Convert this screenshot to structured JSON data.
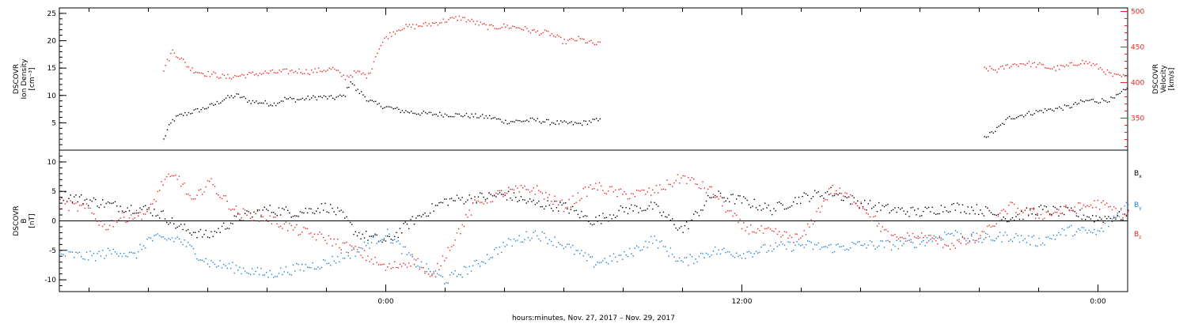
{
  "colors": {
    "black": "#000000",
    "red": "#e8241c",
    "blue": "#1f7fd0",
    "frame": "#000000"
  },
  "chart_data": [
    {
      "type": "scatter",
      "panel": "top",
      "ylabel_lines": [
        "DSCOVR",
        "Ion Density",
        "[cm⁻³]"
      ],
      "ylabel2_lines": [
        "DSCOVR",
        "Velocity",
        "[km/s]"
      ],
      "ylim": [
        0,
        26
      ],
      "yticks": [
        5,
        10,
        15,
        20,
        25
      ],
      "y2lim": [
        305,
        505
      ],
      "y2ticks": [
        350,
        400,
        450,
        500
      ],
      "grid": false,
      "series": [
        {
          "axis": "left",
          "color": "black",
          "x": [
            -7.5,
            -7.4,
            -7.2,
            -7.0,
            -6.6,
            -6.2,
            -5.8,
            -5.4,
            -5.0,
            -4.6,
            -4.2,
            -3.8,
            -3.4,
            -3.0,
            -2.6,
            -2.2,
            -1.8,
            -1.4,
            -1.2,
            -1.0,
            -0.8,
            -0.6,
            -0.3,
            0.0,
            0.5,
            1.0,
            1.5,
            2.0,
            2.5,
            3.0,
            3.5,
            4.0,
            4.5,
            5.0,
            5.5,
            6.0,
            6.5,
            7.0,
            20.3,
            20.6,
            21.0,
            21.5,
            22.0,
            22.5,
            23.0,
            23.4,
            23.7,
            24.0,
            24.5,
            25.0,
            25.5,
            26.0,
            26.5,
            27.0,
            27.3,
            27.6
          ],
          "y": [
            2.0,
            3.5,
            5.5,
            6.3,
            7.0,
            7.6,
            8.4,
            9.6,
            10.1,
            9.0,
            8.8,
            8.5,
            9.5,
            9.3,
            9.6,
            9.8,
            9.6,
            10.0,
            12.8,
            11.0,
            10.4,
            9.2,
            8.4,
            8.0,
            7.3,
            6.9,
            6.7,
            6.6,
            6.5,
            6.3,
            6.1,
            5.3,
            5.4,
            5.6,
            5.2,
            5.0,
            4.9,
            5.5,
            2.8,
            4.0,
            6.0,
            6.6,
            7.2,
            7.6,
            8.0,
            8.8,
            9.2,
            9.1,
            9.4,
            11.4,
            10.8,
            10.6,
            10.2,
            9.6,
            7.0,
            9.8
          ]
        },
        {
          "axis": "right",
          "color": "red",
          "x": [
            -7.5,
            -7.2,
            -7.0,
            -6.6,
            -6.2,
            -5.8,
            -5.4,
            -5.0,
            -4.6,
            -4.2,
            -3.8,
            -3.4,
            -3.0,
            -2.6,
            -2.2,
            -1.8,
            -1.4,
            -1.0,
            -0.6,
            -0.3,
            0.0,
            0.5,
            1.0,
            1.5,
            2.0,
            2.5,
            3.0,
            3.5,
            4.0,
            4.5,
            5.0,
            5.5,
            6.0,
            6.5,
            7.0,
            20.3,
            20.6,
            21.0,
            21.5,
            22.0,
            22.5,
            23.0,
            23.4,
            23.7,
            24.0,
            24.5,
            25.0,
            25.5,
            26.0,
            26.5,
            27.0,
            27.3,
            27.6
          ],
          "y": [
            420,
            445,
            438,
            420,
            414,
            412,
            408,
            410,
            412,
            414,
            415,
            416,
            417,
            416,
            418,
            420,
            408,
            415,
            410,
            445,
            465,
            478,
            480,
            483,
            488,
            492,
            485,
            478,
            480,
            478,
            472,
            470,
            458,
            462,
            455,
            420,
            418,
            425,
            428,
            425,
            420,
            424,
            430,
            428,
            422,
            410,
            408,
            405,
            404,
            405,
            400,
            390,
            410
          ]
        }
      ]
    },
    {
      "type": "scatter",
      "panel": "bottom",
      "ylabel_lines": [
        "DSCOVR",
        "B",
        "[nT]"
      ],
      "ylim": [
        -12,
        12
      ],
      "yticks": [
        -10,
        -5,
        0,
        5,
        10
      ],
      "grid": false,
      "xlabel": "hours:minutes, Nov. 27, 2017 – Nov. 29, 2017",
      "xlim": [
        -11,
        25
      ],
      "xticks": [
        0,
        12,
        24
      ],
      "xtick_labels": [
        "0:00",
        "12:00",
        "0:00"
      ],
      "legend": {
        "placement": "right",
        "entries": [
          {
            "base": "B",
            "sub": "x",
            "color": "black"
          },
          {
            "base": "B",
            "sub": "y",
            "color": "blue"
          },
          {
            "base": "B",
            "sub": "z",
            "color": "red"
          }
        ]
      },
      "series": [
        {
          "color": "black",
          "x": [
            -11.0,
            -10.0,
            -9.0,
            -8.0,
            -7.5,
            -7.0,
            -6.0,
            -5.0,
            -4.0,
            -3.0,
            -2.0,
            -1.5,
            -1.0,
            0.0,
            1.0,
            2.0,
            3.0,
            4.0,
            5.0,
            6.0,
            7.0,
            8.0,
            9.0,
            10.0,
            11.0,
            12.0,
            13.0,
            14.0,
            15.0,
            16.0,
            17.0,
            18.0,
            19.0,
            20.0,
            21.0,
            22.0,
            23.0,
            24.0,
            25.0,
            26.0,
            27.0,
            28.0
          ],
          "y": [
            4.5,
            3.5,
            2.5,
            2.0,
            1.0,
            -1.0,
            -2.5,
            0.5,
            2.0,
            1.5,
            2.5,
            1.0,
            -2.0,
            -3.5,
            0.5,
            3.5,
            4.0,
            4.5,
            3.0,
            2.5,
            0.0,
            2.0,
            2.5,
            -1.5,
            4.5,
            3.5,
            2.0,
            4.0,
            5.0,
            3.0,
            2.0,
            1.5,
            2.5,
            2.0,
            0.5,
            2.0,
            1.5,
            0.5,
            1.0,
            1.5,
            2.0,
            3.5
          ]
        },
        {
          "color": "blue",
          "x": [
            -11.0,
            -10.0,
            -9.0,
            -8.5,
            -8.0,
            -7.0,
            -6.0,
            -5.0,
            -4.0,
            -3.0,
            -2.0,
            -1.0,
            0.0,
            1.0,
            2.0,
            3.0,
            4.0,
            5.0,
            6.0,
            7.0,
            8.0,
            9.0,
            10.0,
            11.0,
            12.0,
            13.0,
            14.0,
            15.0,
            16.0,
            17.0,
            18.0,
            19.0,
            20.0,
            21.0,
            22.0,
            23.0,
            24.0,
            25.0,
            26.0,
            27.0,
            28.0
          ],
          "y": [
            -5.5,
            -6.0,
            -5.0,
            -6.0,
            -3.0,
            -3.0,
            -7.0,
            -8.0,
            -9.0,
            -8.0,
            -7.0,
            -5.0,
            -2.0,
            -7.0,
            -10.0,
            -7.5,
            -4.0,
            -2.0,
            -4.0,
            -7.0,
            -6.0,
            -3.0,
            -7.0,
            -5.0,
            -5.5,
            -4.5,
            -4.0,
            -4.5,
            -4.0,
            -4.0,
            -3.5,
            -2.0,
            -3.0,
            -2.5,
            -3.5,
            -1.5,
            -2.0,
            3.0,
            -5.0,
            -5.0,
            -5.5
          ]
        },
        {
          "color": "red",
          "x": [
            -11.0,
            -10.0,
            -9.5,
            -9.0,
            -8.0,
            -7.5,
            -7.0,
            -6.5,
            -6.0,
            -5.5,
            -5.0,
            -4.0,
            -3.0,
            -2.0,
            -1.0,
            0.0,
            1.0,
            1.5,
            2.0,
            3.0,
            4.0,
            5.0,
            6.0,
            7.0,
            8.0,
            9.0,
            10.0,
            11.0,
            12.0,
            13.0,
            14.0,
            15.0,
            16.0,
            17.0,
            18.0,
            19.0,
            20.0,
            21.0,
            22.0,
            23.0,
            24.0,
            25.0,
            26.0,
            27.0,
            28.0
          ],
          "y": [
            3.0,
            2.0,
            -1.0,
            0.5,
            1.5,
            7.0,
            7.5,
            3.0,
            7.0,
            4.0,
            1.5,
            0.5,
            -1.5,
            -3.0,
            -5.0,
            -8.0,
            -6.5,
            -10.0,
            -5.5,
            3.0,
            5.0,
            5.5,
            2.5,
            6.0,
            4.5,
            5.0,
            7.5,
            5.0,
            -1.0,
            -2.0,
            -3.0,
            5.5,
            3.0,
            -3.0,
            -2.5,
            -4.0,
            -3.0,
            2.5,
            1.0,
            2.0,
            3.0,
            1.0,
            1.5,
            0.5,
            -2.0
          ]
        }
      ]
    }
  ]
}
